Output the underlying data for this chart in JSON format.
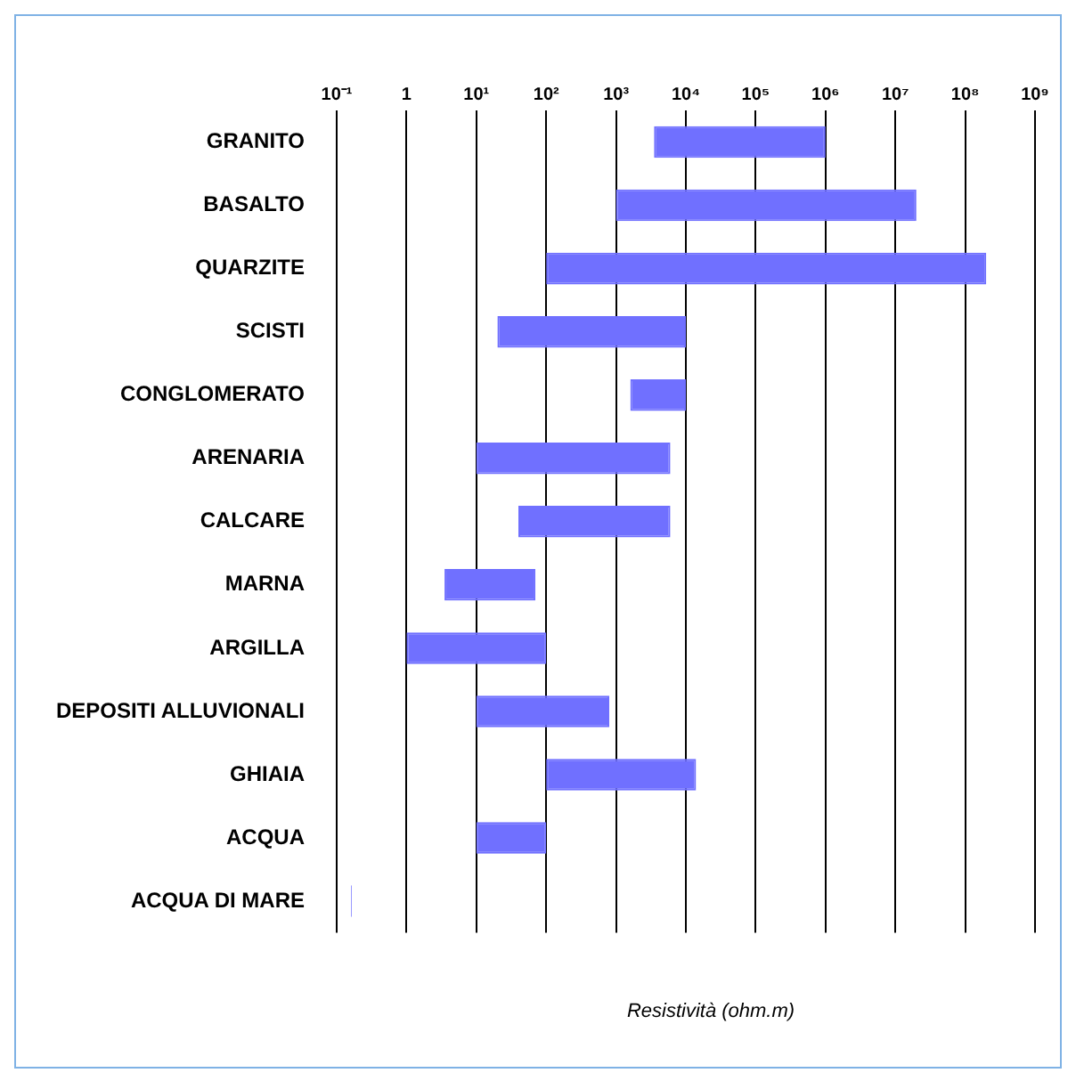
{
  "chart_data": {
    "type": "bar",
    "orientation": "horizontal",
    "xlabel": "Resistività (ohm.m)",
    "categories": [
      "GRANITO",
      "BASALTO",
      "QUARZITE",
      "SCISTI",
      "CONGLOMERATO",
      "ARENARIA",
      "CALCARE",
      "MARNA",
      "ARGILLA",
      "DEPOSITI ALLUVIONALI",
      "GHIAIA",
      "ACQUA",
      "ACQUA DI MARE"
    ],
    "base": [
      3500,
      1000,
      100,
      20,
      1600,
      10,
      40,
      3.5,
      1,
      10,
      100,
      10,
      0.16
    ],
    "values": [
      996500,
      19999000,
      199999900,
      9980,
      8400,
      5990,
      5960,
      66.5,
      99,
      790,
      13900,
      90,
      0.004
    ],
    "color": "#7070ff",
    "log": "x",
    "xlim": [
      0.1,
      1000000000
    ],
    "xticks": [
      {
        "value": 0.1,
        "label": "10⁻¹"
      },
      1,
      {
        "value": 10,
        "label": "10¹"
      },
      {
        "value": 100,
        "label": "10²"
      },
      {
        "value": 1000,
        "label": "10³"
      },
      {
        "value": 10000,
        "label": "10⁴"
      },
      {
        "value": 100000,
        "label": "10⁵"
      },
      {
        "value": 1000000,
        "label": "10⁶"
      },
      {
        "value": 10000000,
        "label": "10⁷"
      },
      {
        "value": 100000000,
        "label": "10⁸"
      },
      {
        "value": 1000000000,
        "label": "10⁹"
      }
    ],
    "grid": "x",
    "legend": false
  }
}
